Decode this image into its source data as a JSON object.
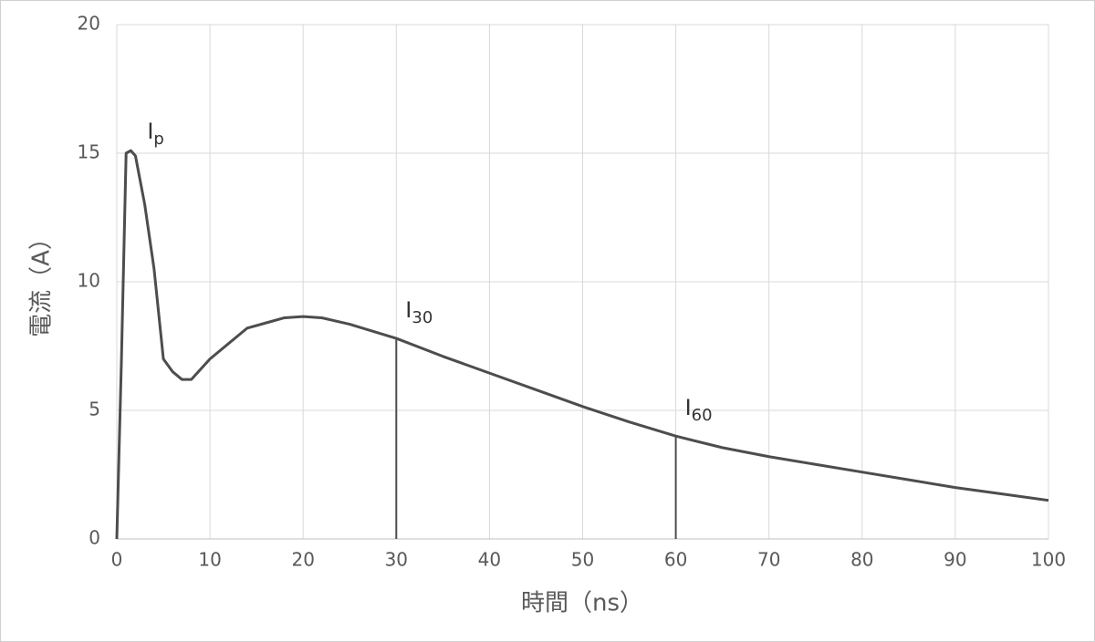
{
  "chart_data": {
    "type": "line",
    "xlabel": "時間（ns）",
    "ylabel": "電流（A）",
    "x": [
      0,
      0.5,
      1,
      1.5,
      2,
      3,
      4,
      5,
      6,
      7,
      8,
      9,
      10,
      12,
      14,
      16,
      18,
      20,
      22,
      25,
      30,
      35,
      40,
      45,
      50,
      55,
      60,
      65,
      70,
      75,
      80,
      85,
      90,
      95,
      100
    ],
    "values": [
      0,
      7,
      15,
      15.1,
      14.9,
      13,
      10.5,
      7,
      6.5,
      6.2,
      6.2,
      6.6,
      7.0,
      7.6,
      8.2,
      8.4,
      8.6,
      8.65,
      8.6,
      8.35,
      7.8,
      7.1,
      6.45,
      5.8,
      5.15,
      4.55,
      4.0,
      3.55,
      3.2,
      2.9,
      2.6,
      2.3,
      2.0,
      1.75,
      1.5
    ],
    "color": "#4d4d4d",
    "xlim": [
      0,
      100
    ],
    "xticks": [
      0,
      10,
      20,
      30,
      40,
      50,
      60,
      70,
      80,
      90,
      100
    ],
    "ylim": [
      0,
      20
    ],
    "yticks": [
      0,
      5,
      10,
      15,
      20
    ],
    "grid": true,
    "annotations": [
      {
        "label": "I",
        "subscript": "p",
        "x": 1.5,
        "y": 15.1,
        "drop_line": false
      },
      {
        "label": "I",
        "subscript": "30",
        "x": 30,
        "y": 7.8,
        "drop_line": true
      },
      {
        "label": "I",
        "subscript": "60",
        "x": 60,
        "y": 4.0,
        "drop_line": true
      }
    ]
  }
}
